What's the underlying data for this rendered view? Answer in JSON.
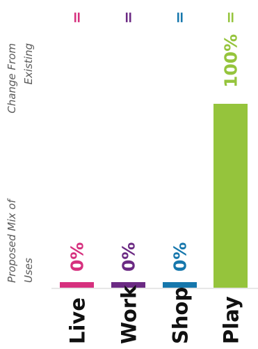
{
  "chart_data": {
    "type": "bar",
    "categories": [
      "Live",
      "Work",
      "Shop",
      "Play"
    ],
    "values": [
      0,
      0,
      0,
      100
    ],
    "value_labels": [
      "0%",
      "0%",
      "0%",
      "100%"
    ],
    "change_markers": [
      "=",
      "=",
      "=",
      "="
    ],
    "ylim": [
      0,
      100
    ],
    "y_side_label": "Proposed Mix of Uses",
    "top_side_label": "Change From Existing",
    "colors": [
      "#d6307e",
      "#6b2a83",
      "#1677ac",
      "#95c43c"
    ],
    "baseline_color": "#cfcfcf",
    "category_label_color": "#111111",
    "side_label_color": "#5a5a5a"
  }
}
